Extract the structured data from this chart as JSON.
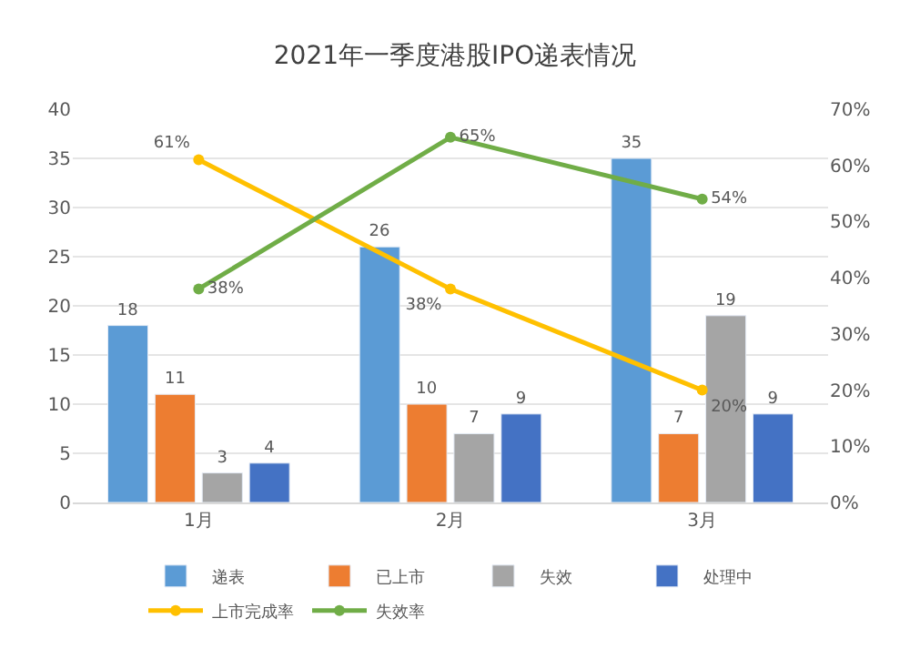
{
  "chart_data": {
    "type": "bar",
    "title": "2021年一季度港股IPO递表情况",
    "categories": [
      "1月",
      "2月",
      "3月"
    ],
    "series": [
      {
        "name": "递表",
        "color": "#5b9bd5",
        "values": [
          18,
          26,
          35
        ],
        "value_labels": [
          "18",
          "26",
          "35"
        ]
      },
      {
        "name": "已上市",
        "color": "#ed7d31",
        "values": [
          11,
          10,
          7
        ],
        "value_labels": [
          "11",
          "10",
          "7"
        ]
      },
      {
        "name": "失效",
        "color": "#a5a5a5",
        "values": [
          3,
          7,
          19
        ],
        "value_labels": [
          "3",
          "7",
          "19"
        ]
      },
      {
        "name": "处理中",
        "color": "#4472c4",
        "values": [
          4,
          9,
          9
        ],
        "value_labels": [
          "4",
          "9",
          "9"
        ]
      },
      {
        "name": "上市完成率",
        "type": "line",
        "axis": "y2",
        "color": "#ffc000",
        "values": [
          61,
          38,
          20
        ],
        "value_labels": [
          "61%",
          "38%",
          "20%"
        ]
      },
      {
        "name": "失效率",
        "type": "line",
        "axis": "y2",
        "color": "#70ad47",
        "values": [
          38,
          65,
          54
        ],
        "value_labels": [
          "38%",
          "65%",
          "54%"
        ]
      }
    ],
    "ylim": [
      0,
      40
    ],
    "yticks": [
      0,
      5,
      10,
      15,
      20,
      25,
      30,
      35,
      40
    ],
    "y2lim": [
      0,
      70
    ],
    "y2ticks": [
      {
        "value": 0,
        "label": "0%"
      },
      {
        "value": 10,
        "label": "10%"
      },
      {
        "value": 20,
        "label": "20%"
      },
      {
        "value": 30,
        "label": "30%"
      },
      {
        "value": 40,
        "label": "40%"
      },
      {
        "value": 50,
        "label": "50%"
      },
      {
        "value": 60,
        "label": "60%"
      },
      {
        "value": 70,
        "label": "70%"
      }
    ],
    "grid": "y",
    "legend": "bottom",
    "marker": "circle"
  }
}
